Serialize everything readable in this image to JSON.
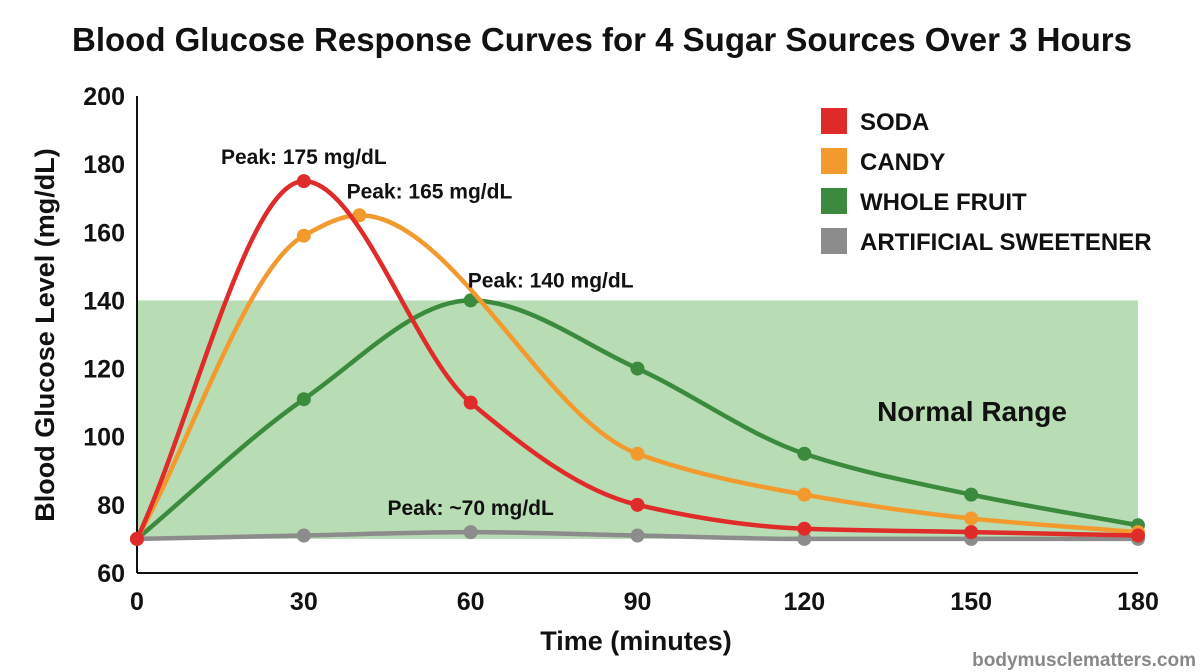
{
  "chart_data": {
    "type": "line",
    "title": "Blood Glucose Response Curves for 4 Sugar Sources Over 3 Hours",
    "xlabel": "Time (minutes)",
    "ylabel": "Blood Glucose Level (mg/dL)",
    "xlim": [
      0,
      180
    ],
    "ylim": [
      60,
      200
    ],
    "x_ticks": [
      0,
      30,
      60,
      90,
      120,
      150,
      180
    ],
    "y_ticks": [
      60,
      80,
      100,
      120,
      140,
      160,
      180,
      200
    ],
    "grid": false,
    "legend_position": "top-right",
    "normal_range": {
      "label": "Normal Range",
      "min": 70,
      "max": 140,
      "color": "#b8dcb3"
    },
    "series": [
      {
        "name": "SODA",
        "color": "#e02b2b",
        "points": [
          [
            0,
            70
          ],
          [
            30,
            175
          ],
          [
            60,
            110
          ],
          [
            90,
            80
          ],
          [
            120,
            73
          ],
          [
            150,
            72
          ],
          [
            180,
            71
          ]
        ]
      },
      {
        "name": "CANDY",
        "color": "#f29a2e",
        "points": [
          [
            0,
            70
          ],
          [
            30,
            159
          ],
          [
            40,
            165
          ],
          [
            90,
            95
          ],
          [
            120,
            83
          ],
          [
            150,
            76
          ],
          [
            180,
            72
          ]
        ]
      },
      {
        "name": "WHOLE FRUIT",
        "color": "#3b8a3e",
        "points": [
          [
            0,
            70
          ],
          [
            30,
            111
          ],
          [
            60,
            140
          ],
          [
            90,
            120
          ],
          [
            120,
            95
          ],
          [
            150,
            83
          ],
          [
            180,
            74
          ]
        ]
      },
      {
        "name": "ARTIFICIAL SWEETENER",
        "color": "#8c8c8c",
        "points": [
          [
            0,
            70
          ],
          [
            30,
            71
          ],
          [
            60,
            72
          ],
          [
            90,
            71
          ],
          [
            120,
            70
          ],
          [
            150,
            70
          ],
          [
            180,
            70
          ]
        ]
      }
    ],
    "annotations": [
      {
        "text": "Peak: 175 mg/dL",
        "x": 30,
        "y": 175
      },
      {
        "text": "Peak: 165 mg/dL",
        "x": 40,
        "y": 165
      },
      {
        "text": "Peak: 140 mg/dL",
        "x": 60,
        "y": 140
      },
      {
        "text": "Peak: ~70 mg/dL",
        "x": 60,
        "y": 72
      }
    ]
  },
  "credit": "bodymusclematters.com"
}
